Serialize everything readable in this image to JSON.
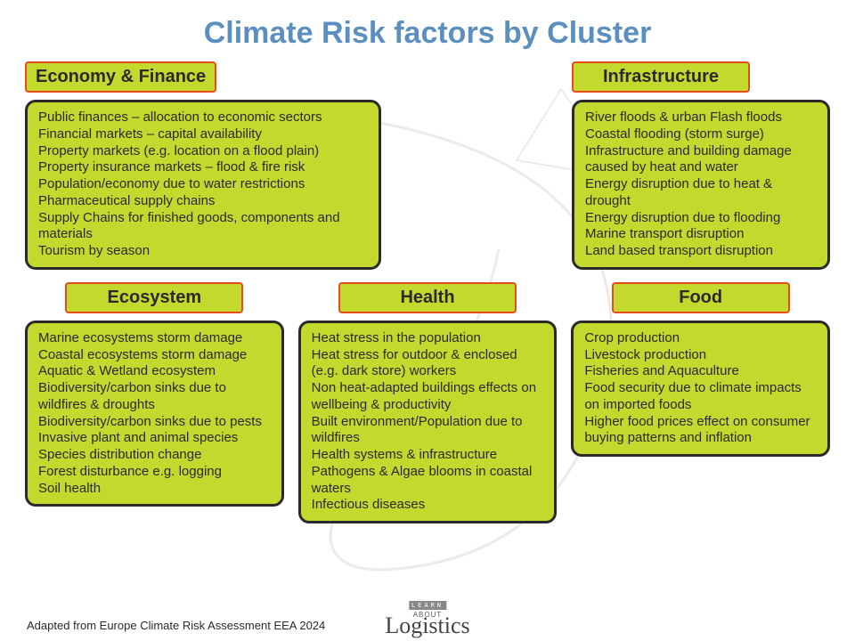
{
  "title": "Climate Risk factors by Cluster",
  "colors": {
    "title_color": "#5a8fbf",
    "box_fill": "#c4d92e",
    "header_border": "#e84c1a",
    "body_border": "#2a2a2a",
    "text_color": "#2a2a2a",
    "background": "#ffffff"
  },
  "clusters": {
    "economy": {
      "label": "Economy & Finance",
      "items": [
        "Public finances – allocation to economic sectors",
        "Financial markets – capital availability",
        "Property markets (e.g. location on a flood plain)",
        "Property insurance markets – flood & fire risk",
        "Population/economy due to water restrictions",
        "Pharmaceutical supply chains",
        "Supply Chains for finished goods, components and materials",
        "Tourism by season"
      ]
    },
    "infrastructure": {
      "label": "Infrastructure",
      "items": [
        "River floods & urban Flash floods",
        "Coastal flooding (storm surge)",
        "Infrastructure and building damage caused by heat and water",
        "Energy disruption due to heat & drought",
        "Energy disruption due to flooding",
        "Marine transport disruption",
        "Land based transport disruption"
      ]
    },
    "ecosystem": {
      "label": "Ecosystem",
      "items": [
        "Marine ecosystems storm damage",
        "Coastal ecosystems storm damage",
        "Aquatic & Wetland ecosystem",
        "Biodiversity/carbon sinks due to wildfires & droughts",
        "Biodiversity/carbon sinks due to pests",
        "Invasive plant and animal species",
        "Species distribution change",
        "Forest disturbance e.g. logging",
        "Soil health"
      ]
    },
    "health": {
      "label": "Health",
      "items": [
        "Heat stress in the population",
        "Heat stress for outdoor & enclosed (e.g. dark store) workers",
        "Non heat-adapted buildings effects on wellbeing & productivity",
        "Built environment/Population due to wildfires",
        "Health systems & infrastructure",
        "Pathogens & Algae blooms in coastal waters",
        "Infectious diseases"
      ]
    },
    "food": {
      "label": "Food",
      "items": [
        "Crop production",
        "Livestock production",
        "Fisheries and Aquaculture",
        "Food security due to climate impacts on imported foods",
        "Higher food prices effect on consumer buying patterns and inflation"
      ]
    }
  },
  "footer": "Adapted from Europe Climate Risk Assessment EEA 2024",
  "logo": {
    "line1": "LEARN",
    "line2": "ABOUT",
    "line3": "Logistics"
  }
}
